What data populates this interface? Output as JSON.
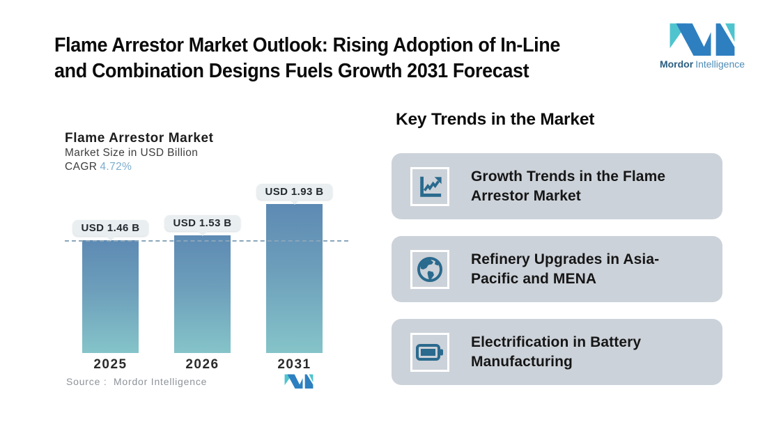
{
  "header": {
    "title_line1": "Flame Arrestor Market Outlook: Rising Adoption of In-Line",
    "title_line2": "and Combination Designs Fuels Growth 2031 Forecast"
  },
  "logo": {
    "word_bold": "Mordor",
    "word_light": "Intelligence"
  },
  "chart_data": {
    "type": "bar",
    "title": "Flame Arrestor Market",
    "subtitle": "Market Size in USD Billion",
    "cagr_label": "CAGR",
    "cagr_value": "4.72%",
    "categories": [
      "2025",
      "2026",
      "2031"
    ],
    "values": [
      1.46,
      1.53,
      1.93
    ],
    "bar_labels": [
      "USD 1.46 B",
      "USD 1.53 B",
      "USD 1.93 B"
    ],
    "unit": "USD Billion",
    "ylim": [
      0,
      2.25
    ],
    "reference_line_value": 1.46,
    "grid": false,
    "legend": false,
    "source_label": "Source :",
    "source_value": "Mordor Intelligence"
  },
  "trends": {
    "heading": "Key Trends in the Market",
    "cards": [
      {
        "icon": "line-chart-icon",
        "text": "Growth Trends in the Flame Arrestor Market"
      },
      {
        "icon": "globe-icon",
        "text": "Refinery Upgrades in Asia-Pacific and MENA"
      },
      {
        "icon": "battery-icon",
        "text": "Electrification in Battery Manufacturing"
      }
    ]
  },
  "colors": {
    "bar_top": "#5d8ab3",
    "bar_bottom": "#85c4c9",
    "dashed_line": "#8aa6ba",
    "value_pill_bg": "#e9eef0",
    "card_bg": "#ccd2d9",
    "icon": "#2a6a8e",
    "logo_teal": "#4fc4ce",
    "logo_blue": "#2e7fc0",
    "cagr_accent": "#7cadce"
  }
}
